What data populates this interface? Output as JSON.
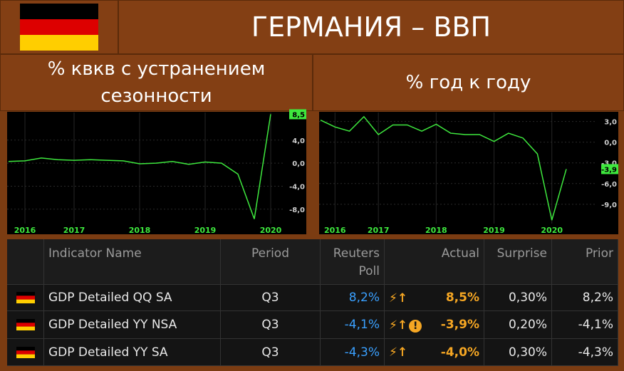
{
  "header": {
    "title": "ГЕРМАНИЯ – ВВП"
  },
  "chart_data": [
    {
      "type": "line",
      "title": "% квкв с устранением сезонности",
      "categories": [
        null,
        "2016",
        null,
        null,
        "2017",
        null,
        null,
        null,
        "2018",
        null,
        null,
        null,
        "2019",
        null,
        null,
        null,
        "2020"
      ],
      "series": [
        {
          "name": "GDP Detailed QQ SA",
          "color": "#3ee83e",
          "values": [
            0.3,
            0.4,
            0.9,
            0.6,
            0.5,
            0.6,
            0.5,
            0.4,
            -0.1,
            0.0,
            0.3,
            -0.2,
            0.2,
            0.0,
            -1.9,
            -9.7,
            8.5
          ],
          "value_labels": [
            null,
            null,
            null,
            null,
            null,
            null,
            null,
            null,
            null,
            null,
            null,
            null,
            null,
            null,
            null,
            null,
            "8,5"
          ]
        }
      ],
      "ylim": [
        -10.5,
        8.8
      ],
      "yticks": [
        {
          "value": 4,
          "label": "4,0"
        },
        {
          "value": 0,
          "label": "0,0"
        },
        {
          "value": -4,
          "label": "-4,0"
        },
        {
          "value": -8,
          "label": "-8,0"
        }
      ]
    },
    {
      "type": "line",
      "title": "% год к году",
      "categories": [
        null,
        "2016",
        null,
        null,
        "2017",
        null,
        null,
        null,
        "2018",
        null,
        null,
        null,
        "2019",
        null,
        null,
        null,
        "2020",
        null
      ],
      "series": [
        {
          "name": "GDP Detailed YY NSA",
          "color": "#3ee83e",
          "values": [
            3.2,
            2.2,
            1.6,
            3.7,
            1.1,
            2.5,
            2.5,
            1.6,
            2.6,
            1.3,
            1.1,
            1.1,
            0.1,
            1.3,
            0.6,
            -1.7,
            -11.3,
            -3.9
          ],
          "value_labels": [
            null,
            null,
            null,
            null,
            null,
            null,
            null,
            null,
            null,
            null,
            null,
            null,
            null,
            null,
            null,
            null,
            null,
            "-3,9"
          ]
        }
      ],
      "ylim": [
        -11.8,
        4.3
      ],
      "yticks": [
        {
          "value": 3,
          "label": "3,0"
        },
        {
          "value": 0,
          "label": "0,0"
        },
        {
          "value": -3,
          "label": "-3,0"
        },
        {
          "value": -6,
          "label": "-6,0"
        },
        {
          "value": -9,
          "label": "-9,0"
        }
      ]
    }
  ],
  "table": {
    "columns": [
      "Indicator Name",
      "Period",
      "Reuters Poll",
      "Actual",
      "Surprise",
      "Prior"
    ],
    "rows": [
      [
        "GDP Detailed QQ SA",
        "Q3",
        "8,2%",
        "8,5%",
        "0,30%",
        "8,2%"
      ],
      [
        "GDP Detailed YY NSA",
        "Q3",
        "-4,1%",
        "-3,9%",
        "0,20%",
        "-4,1%"
      ],
      [
        "GDP Detailed YY SA",
        "Q3",
        "-4,3%",
        "-4,0%",
        "0,30%",
        "-4,3%"
      ]
    ]
  }
}
